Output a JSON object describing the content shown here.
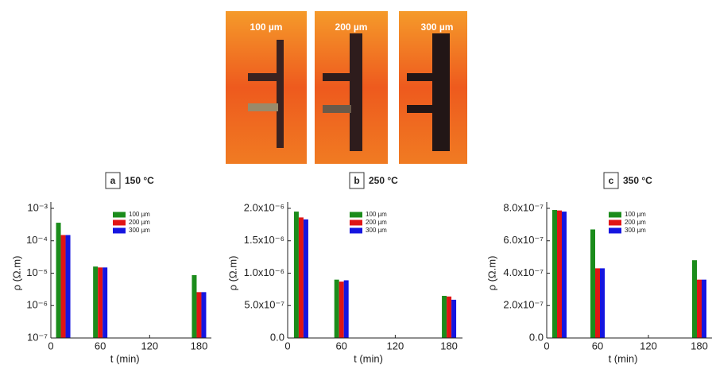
{
  "photos": [
    {
      "label": "100 µm"
    },
    {
      "label": "200 µm"
    },
    {
      "label": "300 µm"
    }
  ],
  "chart_data": [
    {
      "type": "bar",
      "panel": "a",
      "title": "150 °C",
      "xlabel": "t (min)",
      "ylabel": "ρ (Ω.m)",
      "x": [
        15,
        60,
        180
      ],
      "xlim": [
        0,
        195
      ],
      "xticks": [
        0,
        60,
        120,
        180
      ],
      "yscale": "log",
      "ylim": [
        1e-07,
        0.001
      ],
      "yticks": [
        {
          "value": 1e-07,
          "label": "10⁻⁷"
        },
        {
          "value": 1e-06,
          "label": "10⁻⁶"
        },
        {
          "value": 1e-05,
          "label": "10⁻⁵"
        },
        {
          "value": 0.0001,
          "label": "10⁻⁴"
        },
        {
          "value": 0.001,
          "label": "10⁻³"
        }
      ],
      "series": [
        {
          "name": "100 µm",
          "color": "#1b8c1b",
          "values": [
            0.00036,
            1.6e-05,
            8.7e-06
          ]
        },
        {
          "name": "200 µm",
          "color": "#e01515",
          "values": [
            0.00015,
            1.5e-05,
            2.6e-06
          ]
        },
        {
          "name": "300 µm",
          "color": "#1515e0",
          "values": [
            0.00015,
            1.5e-05,
            2.6e-06
          ]
        }
      ]
    },
    {
      "type": "bar",
      "panel": "b",
      "title": "250 °C",
      "xlabel": "t (min)",
      "ylabel": "ρ (Ω.m)",
      "x": [
        15,
        60,
        180
      ],
      "xlim": [
        0,
        195
      ],
      "xticks": [
        0,
        60,
        120,
        180
      ],
      "yscale": "linear",
      "ylim": [
        0,
        2e-06
      ],
      "yticks": [
        {
          "value": 0,
          "label": "0.0"
        },
        {
          "value": 5e-07,
          "label": "5.0x10⁻⁷"
        },
        {
          "value": 1e-06,
          "label": "1.0x10⁻⁶"
        },
        {
          "value": 1.5e-06,
          "label": "1.5x10⁻⁶"
        },
        {
          "value": 2e-06,
          "label": "2.0x10⁻⁶"
        }
      ],
      "series": [
        {
          "name": "100 µm",
          "color": "#1b8c1b",
          "values": [
            1.95e-06,
            9e-07,
            6.5e-07
          ]
        },
        {
          "name": "200 µm",
          "color": "#e01515",
          "values": [
            1.86e-06,
            8.7e-07,
            6.4e-07
          ]
        },
        {
          "name": "300 µm",
          "color": "#1515e0",
          "values": [
            1.83e-06,
            8.9e-07,
            5.9e-07
          ]
        }
      ]
    },
    {
      "type": "bar",
      "panel": "c",
      "title": "350 °C",
      "xlabel": "t (min)",
      "ylabel": "ρ (Ω.m)",
      "x": [
        15,
        60,
        180
      ],
      "xlim": [
        0,
        195
      ],
      "xticks": [
        0,
        60,
        120,
        180
      ],
      "yscale": "linear",
      "ylim": [
        0,
        8e-07
      ],
      "yticks": [
        {
          "value": 0,
          "label": "0.0"
        },
        {
          "value": 2e-07,
          "label": "2.0x10⁻⁷"
        },
        {
          "value": 4e-07,
          "label": "4.0x10⁻⁷"
        },
        {
          "value": 6e-07,
          "label": "6.0x10⁻⁷"
        },
        {
          "value": 8e-07,
          "label": "8.0x10⁻⁷"
        }
      ],
      "series": [
        {
          "name": "100 µm",
          "color": "#1b8c1b",
          "values": [
            7.9e-07,
            6.7e-07,
            4.8e-07
          ]
        },
        {
          "name": "200 µm",
          "color": "#e01515",
          "values": [
            7.87e-07,
            4.3e-07,
            3.6e-07
          ]
        },
        {
          "name": "300 µm",
          "color": "#1515e0",
          "values": [
            7.8e-07,
            4.3e-07,
            3.6e-07
          ]
        }
      ]
    }
  ]
}
